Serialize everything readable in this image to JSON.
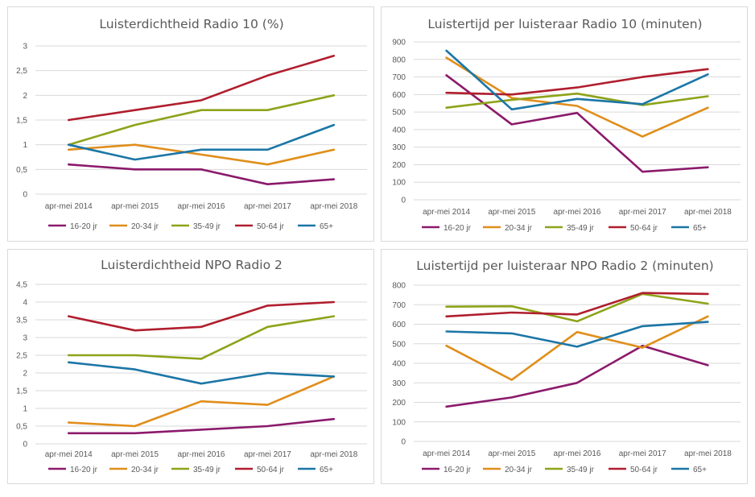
{
  "colors": {
    "16-20 jr": "#8b1a6b",
    "20-34 jr": "#e08e1b",
    "35-49 jr": "#8ea31a",
    "50-64 jr": "#b01e2e",
    "65+": "#1b76a6"
  },
  "chart_data": [
    {
      "type": "line",
      "title": "Luisterdichtheid Radio 10 (%)",
      "categories": [
        "apr-mei 2014",
        "apr-mei 2015",
        "apr-mei 2016",
        "apr-mei 2017",
        "apr-mei 2018"
      ],
      "ylim": [
        0,
        3
      ],
      "yticks": [
        "0",
        "0,5",
        "1",
        "1,5",
        "2",
        "2,5",
        "3"
      ],
      "yticks_values": [
        0,
        0.5,
        1,
        1.5,
        2,
        2.5,
        3
      ],
      "grid": true,
      "legend": "bottom",
      "series": [
        {
          "name": "16-20 jr",
          "values": [
            0.6,
            0.5,
            0.5,
            0.2,
            0.3
          ]
        },
        {
          "name": "20-34 jr",
          "values": [
            0.9,
            1.0,
            0.8,
            0.6,
            0.9
          ]
        },
        {
          "name": "35-49 jr",
          "values": [
            1.0,
            1.4,
            1.7,
            1.7,
            2.0
          ]
        },
        {
          "name": "50-64 jr",
          "values": [
            1.5,
            1.7,
            1.9,
            2.4,
            2.8
          ]
        },
        {
          "name": "65+",
          "values": [
            1.0,
            0.7,
            0.9,
            0.9,
            1.4
          ]
        }
      ]
    },
    {
      "type": "line",
      "title": "Luistertijd per luisteraar Radio 10 (minuten)",
      "categories": [
        "apr-mei 2014",
        "apr-mei 2015",
        "apr-mei 2016",
        "apr-mei 2017",
        "apr-mei 2018"
      ],
      "ylim": [
        0,
        900
      ],
      "yticks": [
        "0",
        "100",
        "200",
        "300",
        "400",
        "500",
        "600",
        "700",
        "800",
        "900"
      ],
      "yticks_values": [
        0,
        100,
        200,
        300,
        400,
        500,
        600,
        700,
        800,
        900
      ],
      "grid": true,
      "legend": "bottom",
      "series": [
        {
          "name": "16-20 jr",
          "values": [
            710,
            430,
            495,
            160,
            185
          ]
        },
        {
          "name": "20-34 jr",
          "values": [
            810,
            580,
            535,
            360,
            525
          ]
        },
        {
          "name": "35-49 jr",
          "values": [
            525,
            570,
            605,
            540,
            590
          ]
        },
        {
          "name": "50-64 jr",
          "values": [
            610,
            600,
            640,
            700,
            745
          ]
        },
        {
          "name": "65+",
          "values": [
            850,
            515,
            575,
            545,
            715
          ]
        }
      ]
    },
    {
      "type": "line",
      "title": "Luisterdichtheid NPO Radio 2",
      "categories": [
        "apr-mei 2014",
        "apr-mei 2015",
        "apr-mei 2016",
        "apr-mei 2017",
        "apr-mei 2018"
      ],
      "ylim": [
        0,
        4.5
      ],
      "yticks": [
        "0",
        "0,5",
        "1",
        "1,5",
        "2",
        "2,5",
        "3",
        "3,5",
        "4",
        "4,5"
      ],
      "yticks_values": [
        0,
        0.5,
        1,
        1.5,
        2,
        2.5,
        3,
        3.5,
        4,
        4.5
      ],
      "grid": true,
      "legend": "bottom",
      "series": [
        {
          "name": "16-20 jr",
          "values": [
            0.3,
            0.3,
            0.4,
            0.5,
            0.7
          ]
        },
        {
          "name": "20-34 jr",
          "values": [
            0.6,
            0.5,
            1.2,
            1.1,
            1.9
          ]
        },
        {
          "name": "35-49 jr",
          "values": [
            2.5,
            2.5,
            2.4,
            3.3,
            3.6
          ]
        },
        {
          "name": "50-64 jr",
          "values": [
            3.6,
            3.2,
            3.3,
            3.9,
            4.0
          ]
        },
        {
          "name": "65+",
          "values": [
            2.3,
            2.1,
            1.7,
            2.0,
            1.9
          ]
        }
      ]
    },
    {
      "type": "line",
      "title": "Luistertijd per luisteraar NPO Radio 2 (minuten)",
      "categories": [
        "apr-mei 2014",
        "apr-mei 2015",
        "apr-mei 2016",
        "apr-mei 2017",
        "apr-mei 2018"
      ],
      "ylim": [
        0,
        800
      ],
      "yticks": [
        "0",
        "100",
        "200",
        "300",
        "400",
        "500",
        "600",
        "700",
        "800"
      ],
      "yticks_values": [
        0,
        100,
        200,
        300,
        400,
        500,
        600,
        700,
        800
      ],
      "grid": true,
      "legend": "bottom",
      "series": [
        {
          "name": "16-20 jr",
          "values": [
            178,
            225,
            300,
            490,
            390
          ]
        },
        {
          "name": "20-34 jr",
          "values": [
            490,
            315,
            560,
            480,
            640
          ]
        },
        {
          "name": "35-49 jr",
          "values": [
            690,
            692,
            615,
            755,
            705
          ]
        },
        {
          "name": "50-64 jr",
          "values": [
            640,
            660,
            650,
            760,
            755
          ]
        },
        {
          "name": "65+",
          "values": [
            563,
            553,
            485,
            590,
            612
          ]
        }
      ]
    }
  ]
}
